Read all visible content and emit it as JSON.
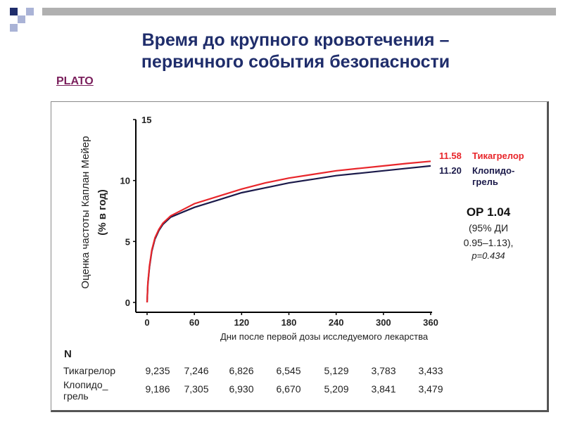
{
  "slide": {
    "title_line1": "Время до крупного кровотечения –",
    "title_line2": "первичного события безопасности",
    "link_label": "PLATO",
    "colors": {
      "title": "#1f2d6b",
      "link": "#7a1f5c",
      "bar": "#b0b0b0",
      "square_dark": "#1f2d6b",
      "square_light": "#aab3d6"
    }
  },
  "chart_data": {
    "type": "line",
    "title": "",
    "xlabel": "Дни после первой дозы исследуемого лекарства",
    "ylabel_line1": "Оценка частоты Каплан Мейер",
    "ylabel_line2": "(% в год)",
    "xlim": [
      0,
      360
    ],
    "ylim": [
      0,
      15
    ],
    "x_ticks": [
      0,
      60,
      120,
      180,
      240,
      300,
      360
    ],
    "y_ticks": [
      0,
      5,
      10,
      15
    ],
    "grid": false,
    "series": [
      {
        "name_line1": "Тикагрелор",
        "end_value": "11.58",
        "color": "#e8262b",
        "x": [
          0,
          1,
          3,
          6,
          10,
          15,
          20,
          30,
          45,
          60,
          90,
          120,
          150,
          180,
          210,
          240,
          270,
          300,
          330,
          360
        ],
        "y": [
          0,
          1.6,
          3.0,
          4.3,
          5.3,
          6.0,
          6.5,
          7.1,
          7.6,
          8.1,
          8.7,
          9.3,
          9.8,
          10.2,
          10.5,
          10.8,
          11.0,
          11.2,
          11.4,
          11.58
        ]
      },
      {
        "name_line1": "Клопидо-",
        "name_line2": "грель",
        "end_value": "11.20",
        "color": "#1b1a4a",
        "x": [
          0,
          1,
          3,
          6,
          10,
          15,
          20,
          30,
          45,
          60,
          90,
          120,
          150,
          180,
          210,
          240,
          270,
          300,
          330,
          360
        ],
        "y": [
          0,
          1.5,
          2.9,
          4.2,
          5.2,
          5.9,
          6.4,
          7.0,
          7.4,
          7.8,
          8.4,
          9.0,
          9.4,
          9.8,
          10.1,
          10.4,
          10.6,
          10.8,
          11.0,
          11.2
        ]
      }
    ],
    "hr_box": {
      "line1": "ОР 1.04",
      "line2": "(95% ДИ",
      "line3": "0.95–1.13),",
      "line4": "p=0.434"
    },
    "risk_table": {
      "header": "N",
      "rows": [
        {
          "label_line1": "Тикагрелор",
          "label_line2": "",
          "values": [
            "9,235",
            "7,246",
            "6,826",
            "6,545",
            "5,129",
            "3,783",
            "3,433"
          ]
        },
        {
          "label_line1": "Клопидо_",
          "label_line2": "грель",
          "values": [
            "9,186",
            "7,305",
            "6,930",
            "6,670",
            "5,209",
            "3,841",
            "3,479"
          ]
        }
      ]
    }
  }
}
